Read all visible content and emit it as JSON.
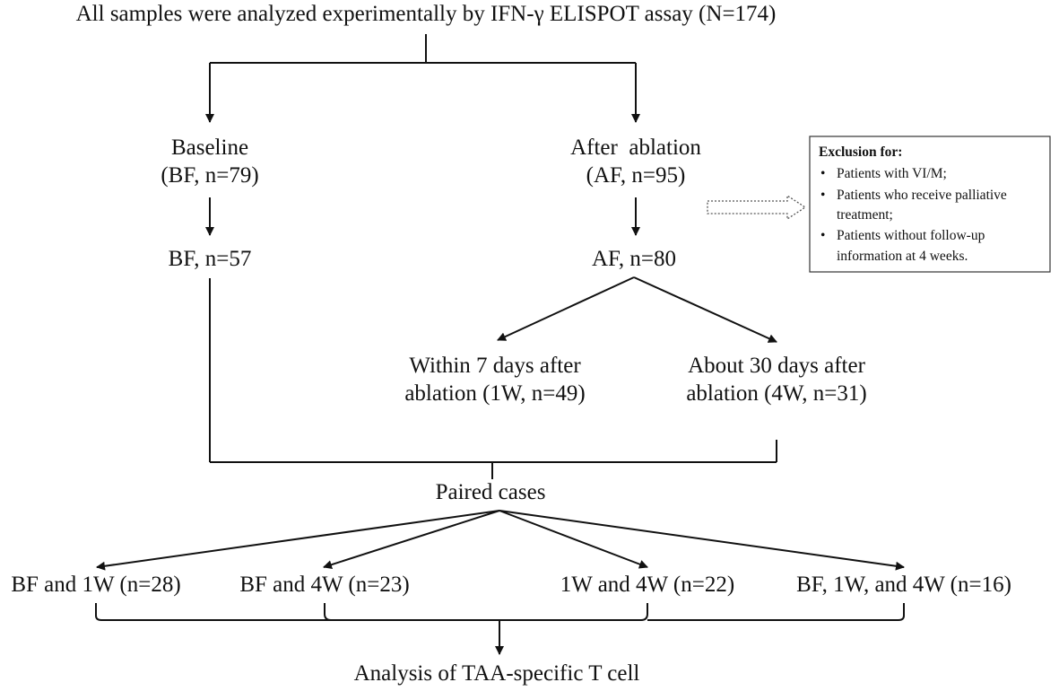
{
  "header": {
    "text": "All samples were analyzed experimentally by IFN-γ ELISPOT assay (N=174)"
  },
  "baseline": {
    "line1": "Baseline",
    "line2": "(BF, n=79)",
    "filtered": "BF, n=57"
  },
  "after": {
    "line1": "After  ablation",
    "line2": "(AF, n=95)",
    "filtered": "AF, n=80"
  },
  "exclusion": {
    "title": "Exclusion for:",
    "items": [
      {
        "line1": "Patients with VI/M;",
        "line2": ""
      },
      {
        "line1": "Patients who receive palliative",
        "line2": "treatment;"
      },
      {
        "line1": "Patients without follow-up",
        "line2": "information at 4 weeks."
      }
    ]
  },
  "week1": {
    "line1": "Within 7 days after",
    "line2": "ablation (1W, n=49)"
  },
  "week4": {
    "line1": "About 30 days after",
    "line2": "ablation (4W, n=31)"
  },
  "paired": {
    "text": "Paired cases"
  },
  "groups": [
    {
      "label": "BF and 1W (n=28)"
    },
    {
      "label": "BF and 4W (n=23)"
    },
    {
      "label": "1W and 4W (n=22)"
    },
    {
      "label": "BF, 1W, and 4W (n=16)"
    }
  ],
  "analysis": {
    "text": "Analysis of TAA-specific T cell"
  }
}
